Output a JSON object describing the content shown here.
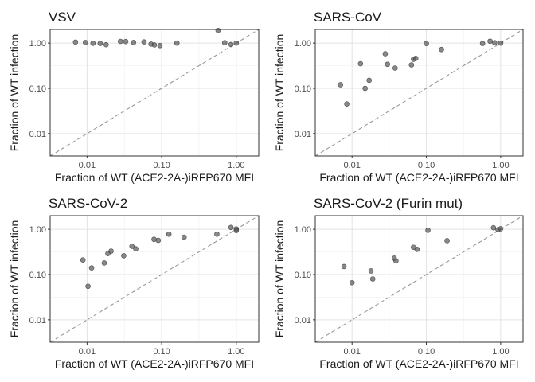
{
  "chart_data": [
    {
      "type": "scatter",
      "title": "VSV",
      "xlabel": "Fraction of WT (ACE2-2A-)iRFP670 MFI",
      "ylabel": "Fraction of WT infection",
      "xscale": "log",
      "yscale": "log",
      "xlim": [
        0.0032,
        2.0
      ],
      "ylim": [
        0.0032,
        2.0
      ],
      "xticks": [
        "0.01",
        "0.10",
        "1.00"
      ],
      "yticks": [
        "0.01",
        "0.10",
        "1.00"
      ],
      "reference_line": "y = x (dashed)",
      "grid": true,
      "points": [
        {
          "x": 0.007,
          "y": 1.05
        },
        {
          "x": 0.0095,
          "y": 1.03
        },
        {
          "x": 0.012,
          "y": 0.99
        },
        {
          "x": 0.015,
          "y": 0.98
        },
        {
          "x": 0.018,
          "y": 0.92
        },
        {
          "x": 0.028,
          "y": 1.09
        },
        {
          "x": 0.033,
          "y": 1.08
        },
        {
          "x": 0.042,
          "y": 1.03
        },
        {
          "x": 0.058,
          "y": 1.06
        },
        {
          "x": 0.072,
          "y": 0.95
        },
        {
          "x": 0.08,
          "y": 0.91
        },
        {
          "x": 0.095,
          "y": 0.88
        },
        {
          "x": 0.16,
          "y": 1.0
        },
        {
          "x": 0.57,
          "y": 1.9
        },
        {
          "x": 0.7,
          "y": 1.02
        },
        {
          "x": 0.85,
          "y": 0.93
        },
        {
          "x": 1.0,
          "y": 1.0
        }
      ]
    },
    {
      "type": "scatter",
      "title": "SARS-CoV",
      "xlabel": "Fraction of WT (ACE2-2A-)iRFP670 MFI",
      "ylabel": "Fraction of WT infection",
      "xscale": "log",
      "yscale": "log",
      "xlim": [
        0.0032,
        2.0
      ],
      "ylim": [
        0.0032,
        2.0
      ],
      "xticks": [
        "0.01",
        "0.10",
        "1.00"
      ],
      "yticks": [
        "0.01",
        "0.10",
        "1.00"
      ],
      "reference_line": "y = x (dashed)",
      "grid": true,
      "points": [
        {
          "x": 0.007,
          "y": 0.12
        },
        {
          "x": 0.0085,
          "y": 0.045
        },
        {
          "x": 0.013,
          "y": 0.35
        },
        {
          "x": 0.015,
          "y": 0.1
        },
        {
          "x": 0.017,
          "y": 0.15
        },
        {
          "x": 0.028,
          "y": 0.58
        },
        {
          "x": 0.03,
          "y": 0.34
        },
        {
          "x": 0.038,
          "y": 0.28
        },
        {
          "x": 0.063,
          "y": 0.33
        },
        {
          "x": 0.067,
          "y": 0.44
        },
        {
          "x": 0.072,
          "y": 0.46
        },
        {
          "x": 0.1,
          "y": 0.98
        },
        {
          "x": 0.16,
          "y": 0.72
        },
        {
          "x": 0.57,
          "y": 0.98
        },
        {
          "x": 0.72,
          "y": 1.1
        },
        {
          "x": 0.83,
          "y": 1.02
        },
        {
          "x": 1.0,
          "y": 1.0
        }
      ]
    },
    {
      "type": "scatter",
      "title": "SARS-CoV-2",
      "xlabel": "Fraction of WT (ACE2-2A-)iRFP670 MFI",
      "ylabel": "Fraction of WT infection",
      "xscale": "log",
      "yscale": "log",
      "xlim": [
        0.0032,
        2.0
      ],
      "ylim": [
        0.0032,
        2.0
      ],
      "xticks": [
        "0.01",
        "0.10",
        "1.00"
      ],
      "yticks": [
        "0.01",
        "0.10",
        "1.00"
      ],
      "reference_line": "y = x (dashed)",
      "grid": true,
      "points": [
        {
          "x": 0.0088,
          "y": 0.21
        },
        {
          "x": 0.0103,
          "y": 0.055
        },
        {
          "x": 0.0115,
          "y": 0.14
        },
        {
          "x": 0.017,
          "y": 0.18
        },
        {
          "x": 0.019,
          "y": 0.29
        },
        {
          "x": 0.021,
          "y": 0.33
        },
        {
          "x": 0.031,
          "y": 0.26
        },
        {
          "x": 0.04,
          "y": 0.42
        },
        {
          "x": 0.045,
          "y": 0.37
        },
        {
          "x": 0.079,
          "y": 0.6
        },
        {
          "x": 0.09,
          "y": 0.57
        },
        {
          "x": 0.125,
          "y": 0.78
        },
        {
          "x": 0.2,
          "y": 0.67
        },
        {
          "x": 0.55,
          "y": 0.78
        },
        {
          "x": 0.85,
          "y": 1.1
        },
        {
          "x": 1.0,
          "y": 1.02
        },
        {
          "x": 1.0,
          "y": 0.94
        }
      ]
    },
    {
      "type": "scatter",
      "title": "SARS-CoV-2 (Furin mut)",
      "xlabel": "Fraction of WT (ACE2-2A-)iRFP670 MFI",
      "ylabel": "Fraction of WT infection",
      "xscale": "log",
      "yscale": "log",
      "xlim": [
        0.0032,
        2.0
      ],
      "ylim": [
        0.0032,
        2.0
      ],
      "xticks": [
        "0.01",
        "0.10",
        "1.00"
      ],
      "yticks": [
        "0.01",
        "0.10",
        "1.00"
      ],
      "reference_line": "y = x (dashed)",
      "grid": true,
      "points": [
        {
          "x": 0.0078,
          "y": 0.15
        },
        {
          "x": 0.01,
          "y": 0.066
        },
        {
          "x": 0.018,
          "y": 0.12
        },
        {
          "x": 0.019,
          "y": 0.08
        },
        {
          "x": 0.037,
          "y": 0.23
        },
        {
          "x": 0.039,
          "y": 0.2
        },
        {
          "x": 0.067,
          "y": 0.4
        },
        {
          "x": 0.075,
          "y": 0.36
        },
        {
          "x": 0.105,
          "y": 0.95
        },
        {
          "x": 0.19,
          "y": 0.56
        },
        {
          "x": 0.8,
          "y": 1.08
        },
        {
          "x": 0.92,
          "y": 0.98
        },
        {
          "x": 1.0,
          "y": 1.03
        }
      ]
    }
  ]
}
